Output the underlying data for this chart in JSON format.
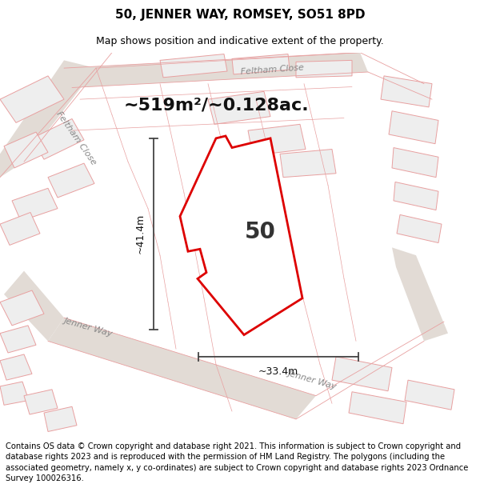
{
  "title_line1": "50, JENNER WAY, ROMSEY, SO51 8PD",
  "title_line2": "Map shows position and indicative extent of the property.",
  "area_text": "~519m²/~0.128ac.",
  "width_text": "~33.4m",
  "height_text": "~41.4m",
  "property_label": "50",
  "footer_text": "Contains OS data © Crown copyright and database right 2021. This information is subject to Crown copyright and database rights 2023 and is reproduced with the permission of HM Land Registry. The polygons (including the associated geometry, namely x, y co-ordinates) are subject to Crown copyright and database rights 2023 Ordnance Survey 100026316.",
  "bg_color": "#ffffff",
  "map_bg": "#f8f8f8",
  "building_fill": "#eeeeee",
  "building_outline": "#e8a0a0",
  "road_fill": "#e8e0d8",
  "highlight_color": "#dd0000",
  "arrow_color": "#444444",
  "title_fontsize": 11,
  "subtitle_fontsize": 9,
  "footer_fontsize": 7.2,
  "area_fontsize": 16,
  "label_fontsize": 20,
  "dim_fontsize": 9
}
